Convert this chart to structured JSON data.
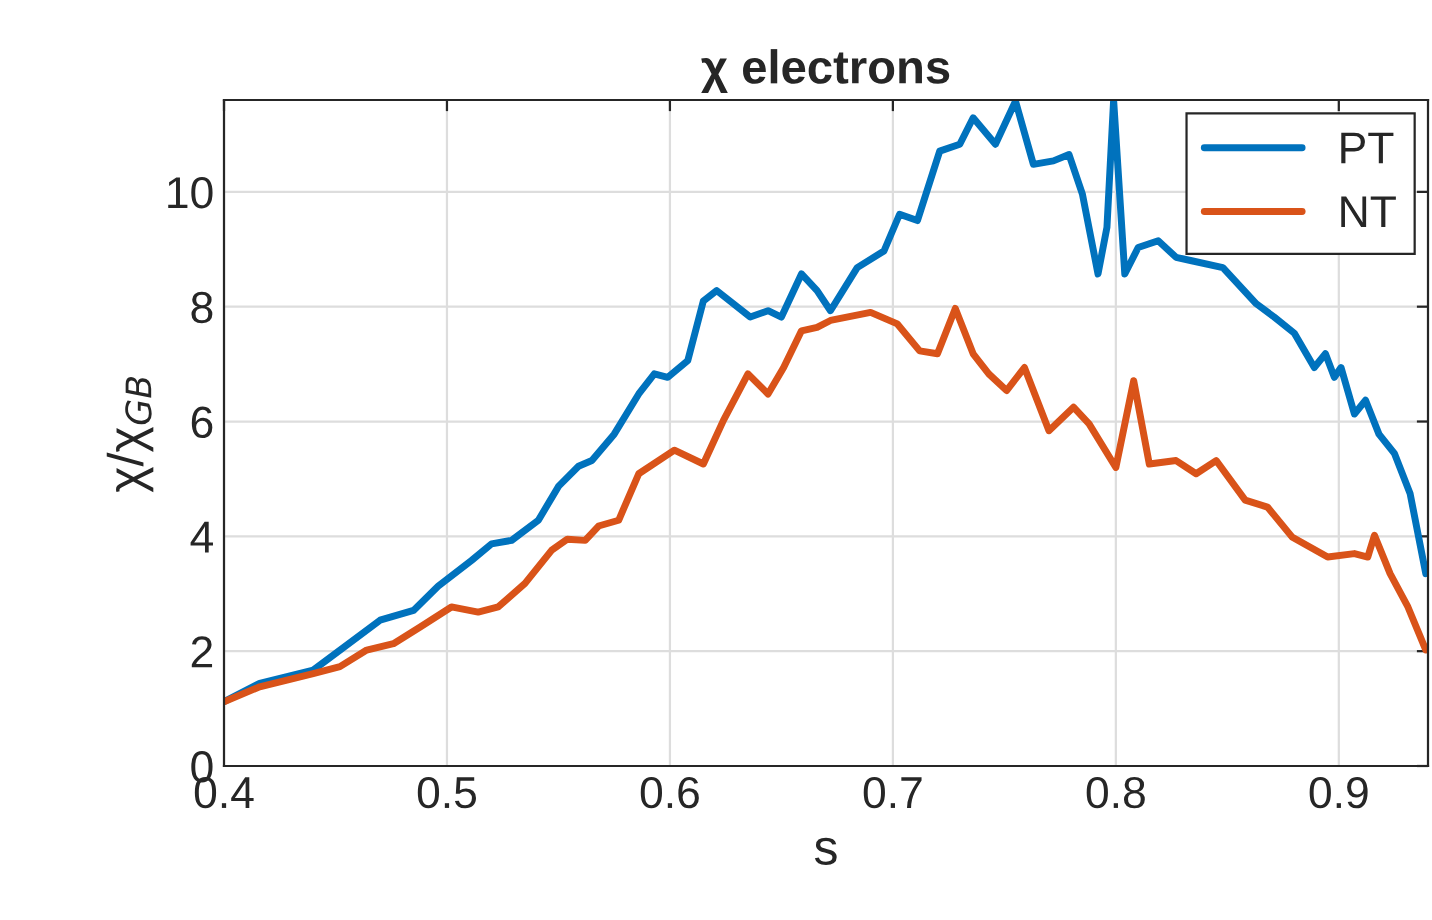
{
  "chart_data": {
    "type": "line",
    "title": "χ electrons",
    "xlabel": "s",
    "ylabel": "χ/χ$_{GB}$",
    "xlim": [
      0.4,
      0.94
    ],
    "ylim": [
      0,
      11.6
    ],
    "xticks": [
      0.4,
      0.5,
      0.6,
      0.7,
      0.8,
      0.9
    ],
    "yticks": [
      0,
      2,
      4,
      6,
      8,
      10
    ],
    "grid": true,
    "legend": "top right",
    "series": [
      {
        "name": "PT",
        "color": "#0072bd",
        "x": [
          0.4,
          0.416,
          0.44,
          0.47,
          0.485,
          0.496,
          0.511,
          0.52,
          0.529,
          0.541,
          0.55,
          0.559,
          0.565,
          0.575,
          0.586,
          0.593,
          0.599,
          0.608,
          0.615,
          0.621,
          0.636,
          0.644,
          0.65,
          0.659,
          0.666,
          0.672,
          0.684,
          0.696,
          0.703,
          0.711,
          0.721,
          0.73,
          0.736,
          0.746,
          0.755,
          0.763,
          0.772,
          0.779,
          0.785,
          0.792,
          0.796,
          0.799,
          0.804,
          0.81,
          0.819,
          0.827,
          0.834,
          0.848,
          0.863,
          0.871,
          0.88,
          0.889,
          0.894,
          0.898,
          0.901,
          0.907,
          0.912,
          0.918,
          0.925,
          0.932,
          0.939
        ],
        "values": [
          1.12,
          1.44,
          1.67,
          2.54,
          2.71,
          3.13,
          3.58,
          3.87,
          3.93,
          4.28,
          4.87,
          5.22,
          5.32,
          5.78,
          6.48,
          6.83,
          6.77,
          7.06,
          8.1,
          8.28,
          7.82,
          7.93,
          7.82,
          8.57,
          8.28,
          7.93,
          8.68,
          8.97,
          9.61,
          9.5,
          10.71,
          10.83,
          11.29,
          10.83,
          11.58,
          10.48,
          10.54,
          10.65,
          9.96,
          8.57,
          9.38,
          11.6,
          8.57,
          9.03,
          9.15,
          8.86,
          8.8,
          8.68,
          8.05,
          7.82,
          7.54,
          6.94,
          7.18,
          6.77,
          6.94,
          6.13,
          6.37,
          5.78,
          5.44,
          4.74,
          3.35
        ]
      },
      {
        "name": "NT",
        "color": "#d95319",
        "x": [
          0.4,
          0.416,
          0.44,
          0.452,
          0.464,
          0.476,
          0.488,
          0.502,
          0.514,
          0.523,
          0.535,
          0.547,
          0.554,
          0.562,
          0.568,
          0.577,
          0.586,
          0.602,
          0.615,
          0.624,
          0.635,
          0.644,
          0.651,
          0.659,
          0.666,
          0.672,
          0.69,
          0.702,
          0.712,
          0.72,
          0.728,
          0.736,
          0.743,
          0.751,
          0.759,
          0.77,
          0.781,
          0.788,
          0.8,
          0.808,
          0.815,
          0.827,
          0.836,
          0.845,
          0.858,
          0.868,
          0.879,
          0.895,
          0.907,
          0.913,
          0.916,
          0.923,
          0.931,
          0.939
        ],
        "values": [
          1.12,
          1.38,
          1.61,
          1.73,
          2.02,
          2.13,
          2.42,
          2.77,
          2.68,
          2.77,
          3.18,
          3.76,
          3.95,
          3.93,
          4.18,
          4.28,
          5.09,
          5.5,
          5.26,
          6.02,
          6.83,
          6.48,
          6.94,
          7.58,
          7.64,
          7.76,
          7.9,
          7.7,
          7.23,
          7.18,
          7.97,
          7.18,
          6.83,
          6.54,
          6.94,
          5.84,
          6.25,
          5.96,
          5.2,
          6.71,
          5.26,
          5.32,
          5.09,
          5.32,
          4.63,
          4.51,
          3.99,
          3.64,
          3.7,
          3.64,
          4.02,
          3.35,
          2.77,
          2.02
        ]
      }
    ]
  }
}
